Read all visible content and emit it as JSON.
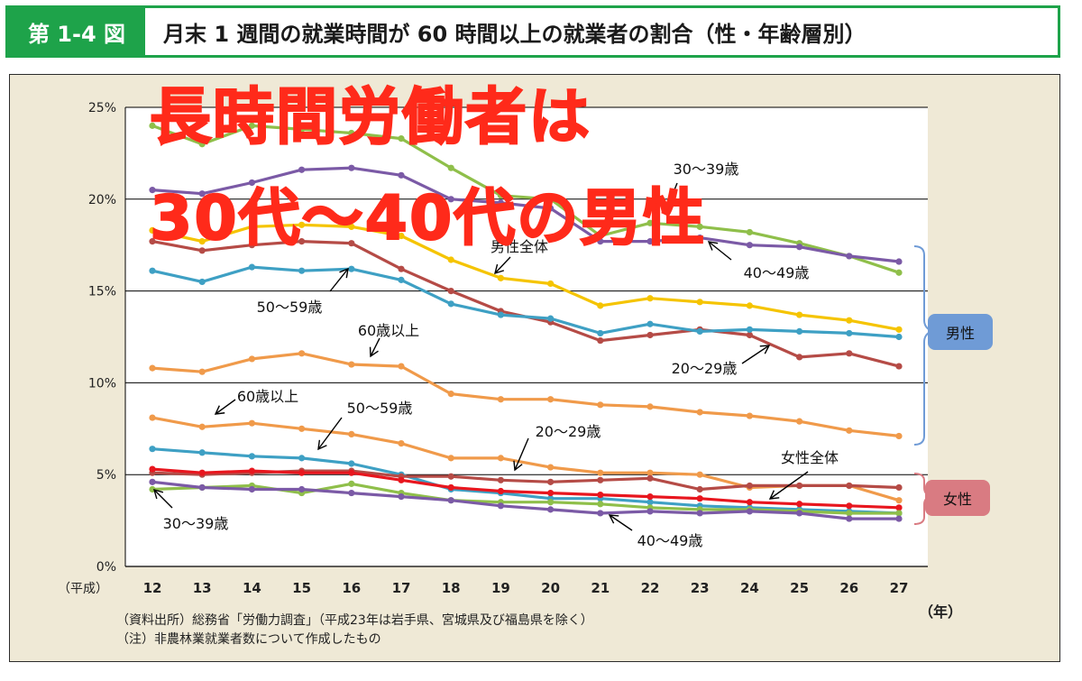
{
  "header": {
    "figure_number": "第 1-4 図",
    "title": "月末 1 週間の就業時間が 60 時間以上の就業者の割合（性・年齢層別）"
  },
  "chart_data": {
    "type": "line",
    "title": "",
    "xlabel": "",
    "ylabel": "",
    "x_prefix": "（平成）",
    "x_unit": "（年）",
    "ylim": [
      0,
      25
    ],
    "y_ticks": [
      "0%",
      "5%",
      "10%",
      "15%",
      "20%",
      "25%"
    ],
    "categories": [
      "12",
      "13",
      "14",
      "15",
      "16",
      "17",
      "18",
      "19",
      "20",
      "21",
      "22",
      "23",
      "24",
      "25",
      "26",
      "27"
    ],
    "grid": true,
    "series": [
      {
        "name": "30〜39歳（男性）",
        "color": "#8fbf4a",
        "values": [
          24.0,
          23.0,
          24.0,
          23.8,
          23.6,
          23.3,
          21.7,
          20.2,
          20.0,
          18.0,
          18.7,
          18.5,
          18.2,
          17.6,
          16.9,
          16.0
        ]
      },
      {
        "name": "40〜49歳（男性）",
        "color": "#7b5aa6",
        "values": [
          20.5,
          20.3,
          20.9,
          21.6,
          21.7,
          21.3,
          20.0,
          19.8,
          19.5,
          17.7,
          17.7,
          17.9,
          17.5,
          17.4,
          16.9,
          16.6
        ]
      },
      {
        "name": "男性全体",
        "color": "#f5c400",
        "values": [
          18.3,
          17.7,
          18.5,
          18.6,
          18.5,
          18.0,
          16.7,
          15.7,
          15.4,
          14.2,
          14.6,
          14.4,
          14.2,
          13.7,
          13.4,
          12.9
        ]
      },
      {
        "name": "20〜29歳（男性）",
        "color": "#b54b46",
        "values": [
          17.7,
          17.2,
          17.5,
          17.7,
          17.6,
          16.2,
          15.0,
          13.9,
          13.3,
          12.3,
          12.6,
          12.9,
          12.6,
          11.4,
          11.6,
          10.9
        ]
      },
      {
        "name": "50〜59歳（男性）",
        "color": "#3ea0c4",
        "values": [
          16.1,
          15.5,
          16.3,
          16.1,
          16.2,
          15.6,
          14.3,
          13.7,
          13.5,
          12.7,
          13.2,
          12.8,
          12.9,
          12.8,
          12.7,
          12.5
        ]
      },
      {
        "name": "60歳以上（男性）",
        "color": "#f09a4a",
        "values": [
          10.8,
          10.6,
          11.3,
          11.6,
          11.0,
          10.9,
          9.4,
          9.1,
          9.1,
          8.8,
          8.7,
          8.4,
          8.2,
          7.9,
          7.4,
          7.1
        ]
      },
      {
        "name": "60歳以上（女性）",
        "color": "#f09a4a",
        "values": [
          8.1,
          7.6,
          7.8,
          7.5,
          7.2,
          6.7,
          5.9,
          5.9,
          5.4,
          5.1,
          5.1,
          5.0,
          4.3,
          4.4,
          4.4,
          3.6
        ]
      },
      {
        "name": "50〜59歳（女性）",
        "color": "#3ea0c4",
        "values": [
          6.4,
          6.2,
          6.0,
          5.9,
          5.6,
          5.0,
          4.2,
          4.0,
          3.7,
          3.7,
          3.5,
          3.3,
          3.2,
          3.1,
          3.0,
          2.9
        ]
      },
      {
        "name": "20〜29歳（女性）",
        "color": "#b54b46",
        "values": [
          5.1,
          5.0,
          5.1,
          5.2,
          5.2,
          4.9,
          4.9,
          4.7,
          4.6,
          4.7,
          4.8,
          4.2,
          4.4,
          4.4,
          4.4,
          4.3
        ]
      },
      {
        "name": "女性全体",
        "color": "#e8161e",
        "values": [
          5.3,
          5.1,
          5.2,
          5.1,
          5.1,
          4.7,
          4.3,
          4.1,
          4.0,
          3.9,
          3.8,
          3.7,
          3.5,
          3.4,
          3.3,
          3.2
        ]
      },
      {
        "name": "30〜39歳（女性）",
        "color": "#8fbf4a",
        "values": [
          4.2,
          4.3,
          4.4,
          4.0,
          4.5,
          4.0,
          3.6,
          3.5,
          3.5,
          3.4,
          3.2,
          3.1,
          3.1,
          3.0,
          2.9,
          2.9
        ]
      },
      {
        "name": "40〜49歳（女性）",
        "color": "#7b5aa6",
        "values": [
          4.6,
          4.3,
          4.2,
          4.2,
          4.0,
          3.8,
          3.6,
          3.3,
          3.1,
          2.9,
          3.0,
          2.9,
          3.0,
          2.9,
          2.6,
          2.6
        ]
      }
    ],
    "annotations": {
      "male_30_39": "30〜39歳",
      "male_40_49": "40〜49歳",
      "male_all": "男性全体",
      "male_50_59": "50〜59歳",
      "male_60_plus": "60歳以上",
      "male_20_29": "20〜29歳",
      "female_60_plus": "60歳以上",
      "female_50_59": "50〜59歳",
      "female_20_29": "20〜29歳",
      "female_all": "女性全体",
      "female_30_39": "30〜39歳",
      "female_40_49": "40〜49歳"
    },
    "group_labels": {
      "male": "男性",
      "female": "女性"
    },
    "group_colors": {
      "male": "#6f9bd6",
      "female": "#d97b82"
    },
    "overlay_text": [
      "長時間労働者は",
      "30代〜40代の男性"
    ],
    "overlay_color": "#ff2a1a",
    "source_note": "（資料出所）総務省「労働力調査」（平成23年は岩手県、宮城県及び福島県を除く）",
    "note": "（注）非農林業就業者数について作成したもの"
  }
}
